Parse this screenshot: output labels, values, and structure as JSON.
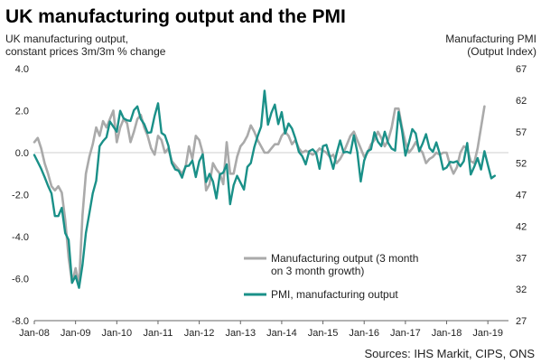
{
  "chart_data": {
    "type": "line",
    "title": "UK manufacturing output and the PMI",
    "left_axis_label": [
      "UK manufacturing output,",
      "constant prices 3m/3m % change"
    ],
    "right_axis_label": [
      "Manufacturing PMI",
      "(Output Index)"
    ],
    "source": "Sources: IHS Markit, CIPS, ONS",
    "x_start": 2008.0,
    "x_end": 2019.5,
    "left_ylim": [
      -8.0,
      4.0
    ],
    "right_ylim": [
      27,
      67
    ],
    "left_ticks": [
      "4.0",
      "2.0",
      "0.0",
      "-2.0",
      "-4.0",
      "-6.0",
      "-8.0"
    ],
    "left_tick_values": [
      4,
      2,
      0,
      -2,
      -4,
      -6,
      -8
    ],
    "right_ticks": [
      "67",
      "62",
      "57",
      "52",
      "47",
      "42",
      "37",
      "32",
      "27"
    ],
    "right_tick_values": [
      67,
      62,
      57,
      52,
      47,
      42,
      37,
      32,
      27
    ],
    "x_labels": [
      "Jan-08",
      "Jan-09",
      "Jan-10",
      "Jan-11",
      "Jan-12",
      "Jan-13",
      "Jan-14",
      "Jan-15",
      "Jan-16",
      "Jan-17",
      "Jan-18",
      "Jan-19"
    ],
    "x_label_values": [
      2008,
      2009,
      2010,
      2011,
      2012,
      2013,
      2014,
      2015,
      2016,
      2017,
      2018,
      2019
    ],
    "grid": false,
    "legend_position": "bottom-right",
    "series": [
      {
        "name": "Manufacturing output (3 month on 3 month growth)",
        "legend_lines": [
          "Manufacturing output (3 month",
          "on 3 month growth)"
        ],
        "axis": "left",
        "color": "#aaaaaa",
        "start": 2008.0,
        "step": 0.0833333,
        "values": [
          0.5,
          0.7,
          0.2,
          -0.5,
          -1.0,
          -1.6,
          -1.8,
          -1.6,
          -1.9,
          -3.2,
          -5.0,
          -6.2,
          -5.5,
          -6.3,
          -3.0,
          -1.0,
          -0.2,
          0.4,
          1.2,
          0.8,
          1.5,
          1.2,
          1.6,
          2.0,
          0.5,
          1.2,
          1.6,
          1.4,
          0.5,
          1.0,
          1.6,
          1.8,
          1.2,
          0.8,
          0.2,
          -0.1,
          0.8,
          0.6,
          0.0,
          0.2,
          -0.4,
          -0.6,
          -0.8,
          -1.0,
          -0.7,
          0.3,
          -0.3,
          0.8,
          0.6,
          0.0,
          -1.8,
          -1.5,
          -0.5,
          -0.8,
          -1.0,
          -1.5,
          0.5,
          -1.0,
          -1.0,
          -0.2,
          0.3,
          0.5,
          0.8,
          1.3,
          1.0,
          0.6,
          0.3,
          0.0,
          0.0,
          0.2,
          0.4,
          0.4,
          0.8,
          1.0,
          0.8,
          0.4,
          0.6,
          0.2,
          0.0,
          0.1,
          0.0,
          -0.1,
          0.0,
          0.2,
          0.1,
          0.0,
          -0.2,
          -0.1,
          -0.5,
          -0.3,
          0.0,
          0.4,
          0.8,
          1.0,
          0.6,
          0.2,
          -0.2,
          0.0,
          0.4,
          0.6,
          1.0,
          0.7,
          0.3,
          0.6,
          1.2,
          2.1,
          2.1,
          1.2,
          0.5,
          0.0,
          0.2,
          0.5,
          0.2,
          0.0,
          -0.5,
          -0.3,
          -0.2,
          0.0,
          -0.1,
          0.0,
          0.0,
          -0.6,
          -1.0,
          -0.7,
          0.0,
          0.3,
          0.2,
          -0.4,
          -0.5,
          0.2,
          1.2,
          2.2
        ]
      },
      {
        "name": "PMI, manufacturing output",
        "axis": "right",
        "color": "#1a9088",
        "start": 2008.0,
        "step": 0.0833333,
        "values": [
          53.3,
          52.2,
          51.1,
          49.8,
          48.4,
          47.2,
          43.6,
          43.6,
          44.9,
          40.9,
          39.8,
          33.0,
          34.1,
          32.2,
          35.8,
          40.9,
          44.0,
          47.2,
          49.2,
          54.7,
          55.5,
          56.1,
          58.6,
          57.8,
          57.0,
          60.3,
          59.1,
          58.8,
          58.7,
          60.4,
          61.0,
          59.0,
          58.2,
          56.8,
          56.9,
          59.5,
          61.5,
          56.8,
          56.4,
          54.8,
          52.0,
          51.0,
          50.8,
          49.7,
          51.5,
          51.6,
          52.4,
          49.8,
          52.3,
          53.4,
          49.0,
          50.3,
          49.1,
          46.4,
          50.2,
          50.5,
          51.8,
          45.5,
          48.5,
          50.0,
          48.9,
          47.8,
          51.4,
          52.0,
          54.5,
          56.3,
          57.8,
          63.5,
          58.1,
          60.0,
          61.3,
          58.2,
          60.1,
          56.7,
          58.3,
          57.5,
          55.9,
          53.8,
          53.1,
          51.8,
          53.9,
          54.2,
          53.6,
          51.1,
          54.7,
          54.9,
          53.0,
          51.1,
          53.6,
          55.6,
          53.7,
          53.8,
          53.6,
          56.4,
          53.8,
          49.1,
          52.4,
          53.9,
          54.2,
          56.9,
          55.4,
          54.7,
          57.0,
          55.2,
          54.3,
          54.0,
          60.1,
          57.2,
          53.2,
          55.2,
          57.4,
          56.7,
          53.9,
          55.1,
          56.6,
          54.4,
          53.8,
          55.3,
          53.5,
          51.0,
          51.3,
          52.2,
          52.1,
          52.3,
          51.5,
          52.3,
          55.2,
          50.2,
          51.4,
          52.8,
          51.0,
          53.9,
          51.7,
          49.6,
          50.0
        ]
      }
    ]
  }
}
